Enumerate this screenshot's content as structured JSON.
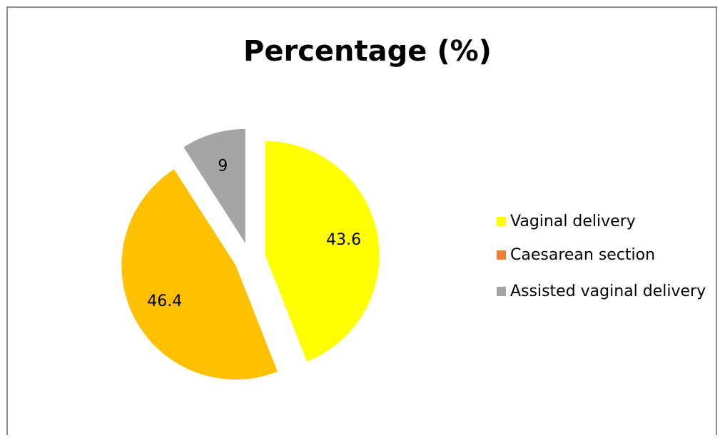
{
  "chart_data": {
    "type": "pie",
    "title": "Percentage (%)",
    "categories": [
      "Vaginal delivery",
      "Caesarean section",
      "Assisted vaginal delivery"
    ],
    "values": [
      43.6,
      46.4,
      9
    ],
    "colors": [
      "#FFFF00",
      "#FFC000",
      "#A5A5A5"
    ],
    "legend_colors": [
      "#FFFF00",
      "#ED7D31",
      "#A5A5A5"
    ],
    "legend": "right"
  }
}
